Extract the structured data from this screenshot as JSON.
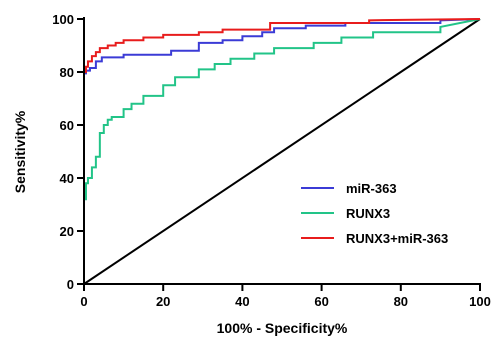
{
  "chart_data": {
    "type": "line",
    "title": "",
    "xlabel": "100% - Specificity%",
    "ylabel": "Sensitivity%",
    "xlim": [
      0,
      100
    ],
    "ylim": [
      0,
      100
    ],
    "xticks": [
      0,
      20,
      40,
      60,
      80,
      100
    ],
    "yticks": [
      0,
      20,
      40,
      60,
      80,
      100
    ],
    "grid": false,
    "legend_position": "bottom-right",
    "reference_line": {
      "x": [
        0,
        100
      ],
      "y": [
        0,
        100
      ],
      "color": "#000000"
    },
    "series": [
      {
        "name": "miR-363",
        "color": "#3b3bd6",
        "x": [
          0,
          0,
          0.5,
          0.5,
          1.5,
          1.5,
          3,
          3,
          4.5,
          4.5,
          10,
          10,
          22,
          22,
          29,
          29,
          35,
          35,
          40,
          40,
          45,
          45,
          48,
          48,
          56,
          56,
          66,
          66,
          90,
          90,
          100
        ],
        "y": [
          0,
          79.5,
          79.5,
          80.5,
          80.5,
          81.5,
          81.5,
          84,
          84,
          85.5,
          85.5,
          86.5,
          86.5,
          88,
          88,
          91,
          91,
          92,
          92,
          93.5,
          93.5,
          95,
          95,
          96.5,
          96.5,
          97.5,
          97.5,
          98.5,
          98.5,
          99.5,
          100
        ]
      },
      {
        "name": "RUNX3",
        "color": "#22c488",
        "x": [
          0,
          0,
          0.5,
          0.5,
          1,
          1,
          2,
          2,
          3,
          3,
          4,
          4,
          5,
          5,
          6,
          6,
          7,
          7,
          10,
          10,
          12,
          12,
          15,
          15,
          20,
          20,
          23,
          23,
          29,
          29,
          33,
          33,
          37,
          37,
          43,
          43,
          48,
          48,
          58,
          58,
          65,
          65,
          73,
          73,
          90,
          90,
          100
        ],
        "y": [
          0,
          32,
          32,
          38,
          38,
          40,
          40,
          44,
          44,
          48,
          48,
          57,
          57,
          60,
          60,
          62,
          62,
          63,
          63,
          66,
          66,
          68,
          68,
          71,
          71,
          75,
          75,
          78,
          78,
          81,
          81,
          83,
          83,
          85,
          85,
          87,
          87,
          89,
          89,
          91,
          91,
          93,
          93,
          95,
          95,
          97,
          100
        ]
      },
      {
        "name": "RUNX3+miR-363",
        "color": "#e81c1c",
        "x": [
          0,
          0,
          0.5,
          0.5,
          1,
          1,
          2,
          2,
          3,
          3,
          4,
          4,
          6,
          6,
          8,
          8,
          10,
          10,
          15,
          15,
          20,
          20,
          29,
          29,
          35,
          35,
          47,
          47,
          72,
          72,
          100
        ],
        "y": [
          0,
          80,
          80,
          82,
          82,
          84,
          84,
          86,
          86,
          87.5,
          87.5,
          89,
          89,
          90,
          90,
          91,
          91,
          92,
          92,
          93,
          93,
          94,
          94,
          95,
          95,
          96,
          96,
          98.5,
          98.5,
          99.5,
          100
        ]
      }
    ]
  }
}
